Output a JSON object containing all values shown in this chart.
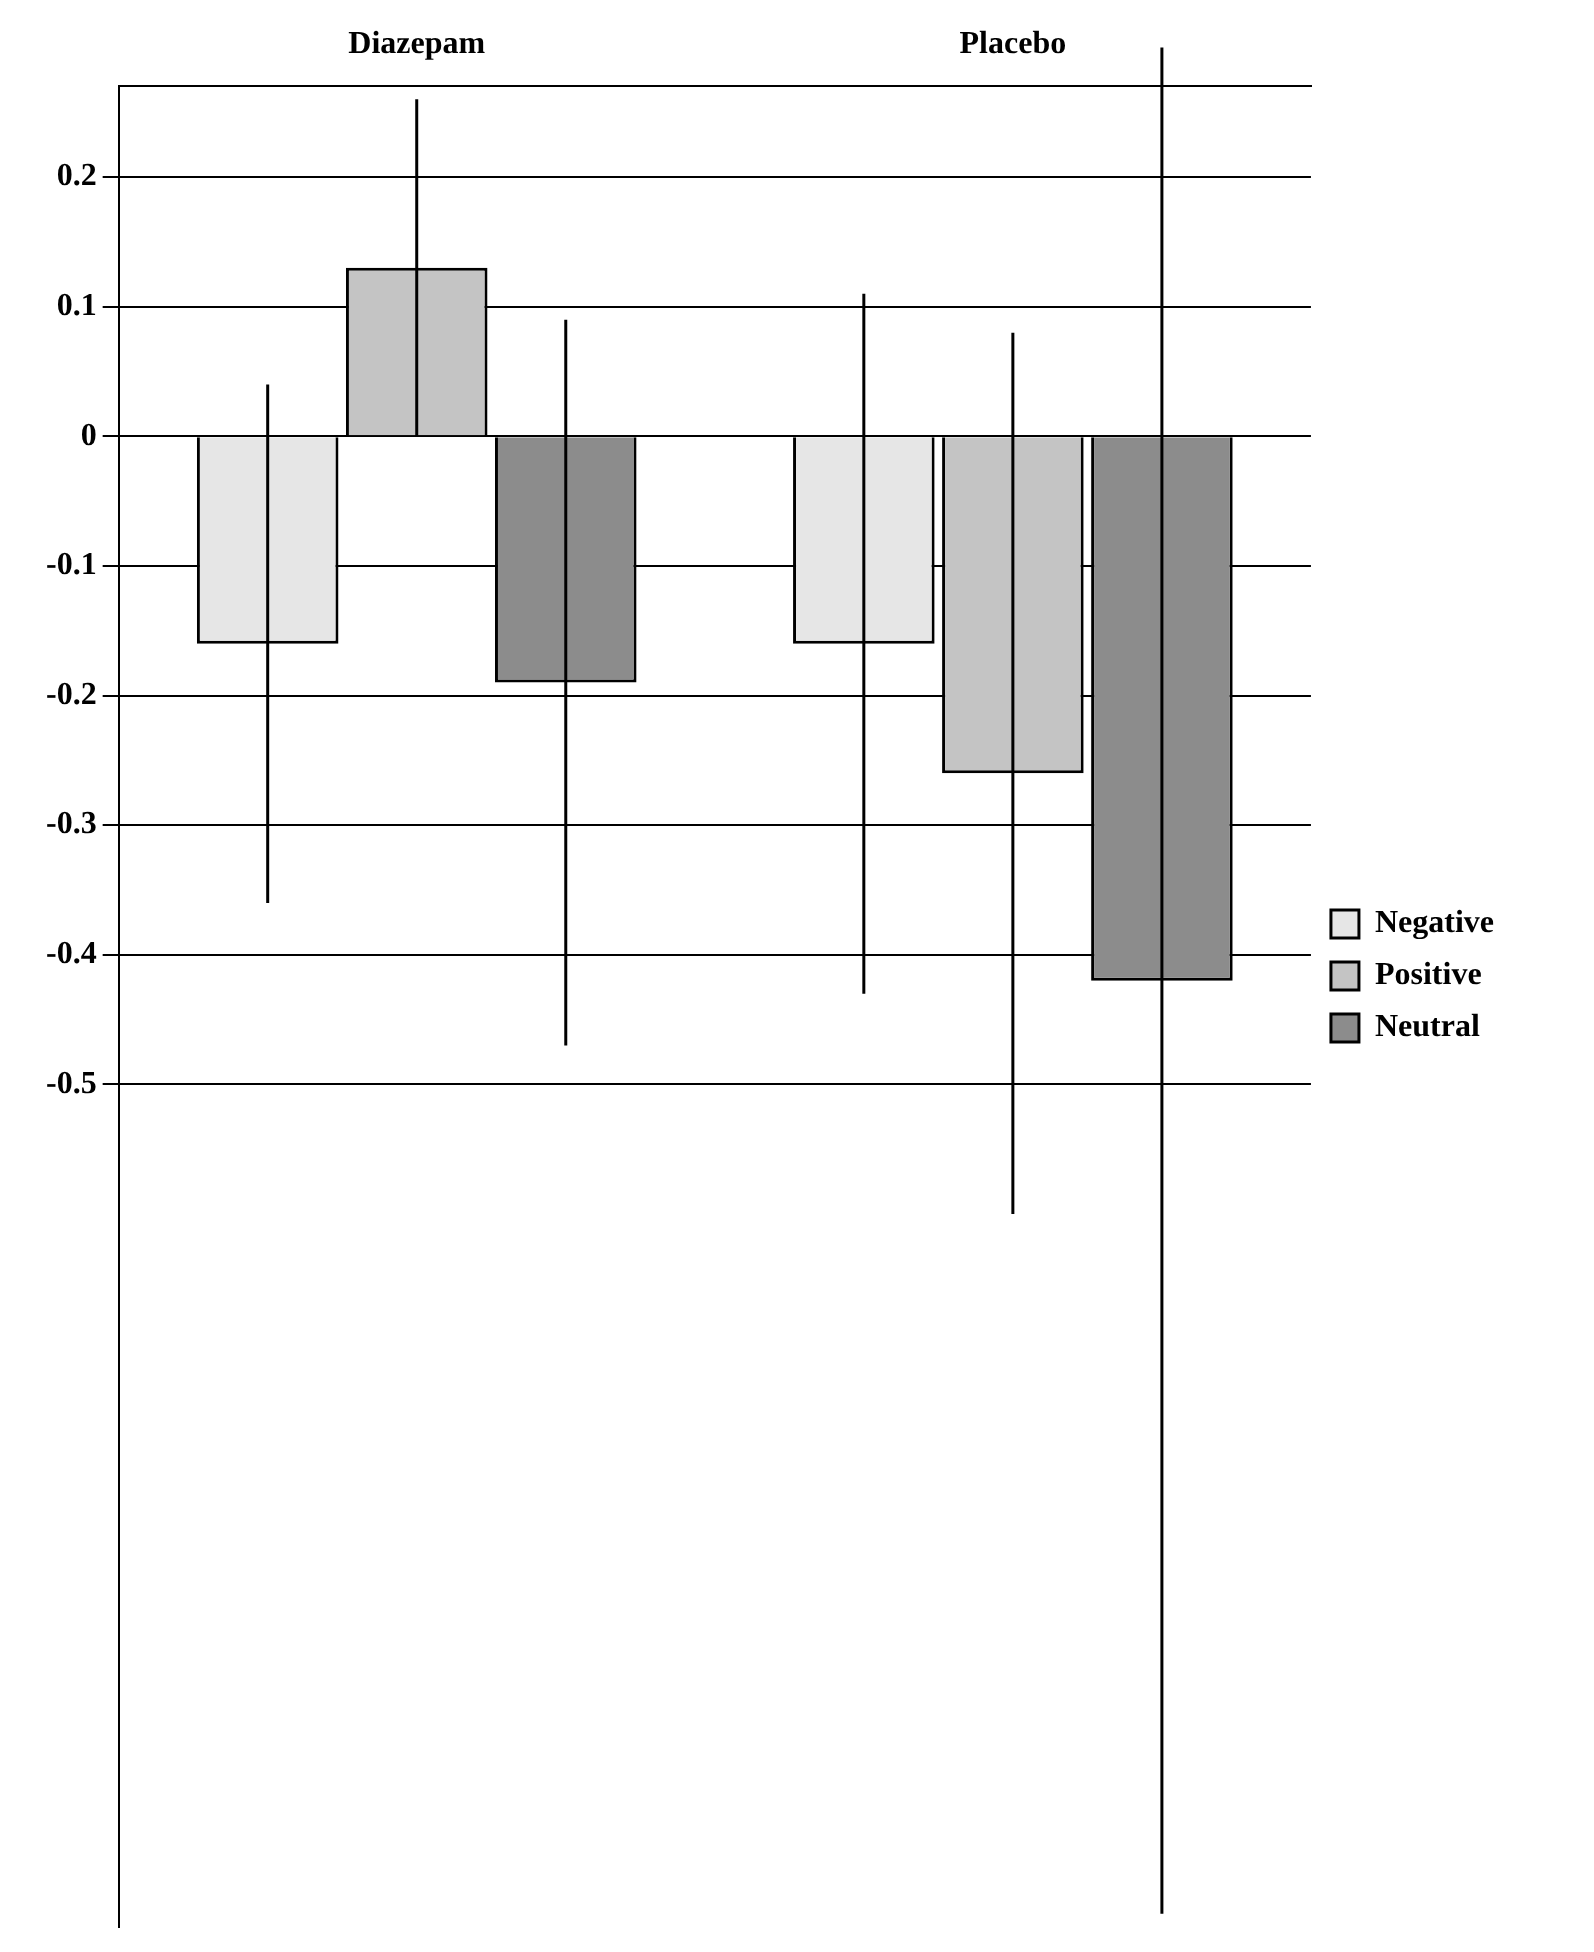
{
  "chart_data": {
    "type": "bar",
    "categories": [
      "Diazepam",
      "Placebo"
    ],
    "series": [
      {
        "name": "Negative",
        "color": "#e6e6e6",
        "values": [
          -0.16,
          -0.16
        ],
        "errors": [
          0.2,
          0.27
        ]
      },
      {
        "name": "Positive",
        "color": "#c4c4c4",
        "values": [
          0.13,
          -0.26
        ],
        "errors": [
          0.13,
          0.34
        ]
      },
      {
        "name": "Neutral",
        "color": "#8c8c8c",
        "values": [
          -0.19,
          -0.42
        ],
        "errors": [
          0.28,
          0.72
        ]
      }
    ],
    "ylim": [
      -1.15,
      0.27
    ],
    "yticks": [
      0.2,
      0.1,
      0,
      -0.1,
      -0.2,
      -0.3,
      -0.4,
      -0.5
    ],
    "grid": "y",
    "legend": "right"
  }
}
